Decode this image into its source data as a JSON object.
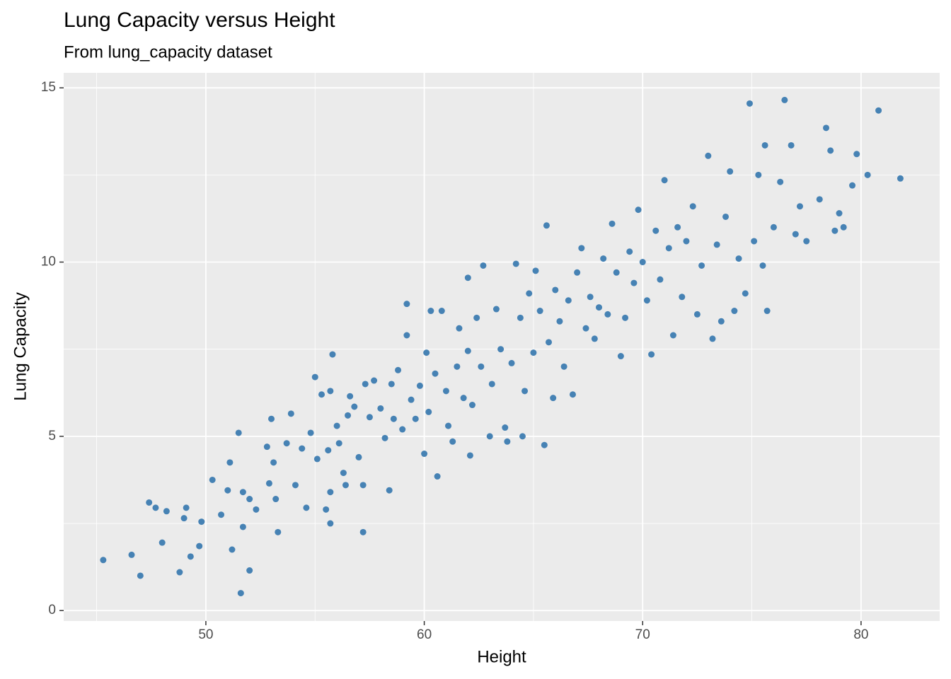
{
  "chart_data": {
    "type": "scatter",
    "title": "Lung Capacity versus Height",
    "subtitle": "From lung_capacity dataset",
    "x_label": "Height",
    "y_label": "Lung Capacity",
    "color": "#4682b4",
    "xlim": [
      43.49,
      83.6
    ],
    "ylim": [
      -0.3,
      15.43
    ],
    "xticks": [
      50,
      60,
      70,
      80
    ],
    "yticks": [
      0,
      5,
      10,
      15
    ],
    "xminor": [
      45,
      55,
      65,
      75
    ],
    "yminor": [
      2.5,
      7.5,
      12.5
    ],
    "grid": true,
    "x": [
      45.3,
      46.6,
      47.0,
      47.4,
      47.7,
      48.0,
      48.2,
      48.8,
      49.0,
      49.1,
      49.3,
      49.8,
      49.7,
      50.3,
      50.7,
      51.0,
      51.1,
      51.2,
      51.5,
      51.6,
      51.7,
      51.7,
      52.0,
      52.0,
      52.3,
      52.8,
      52.9,
      53.0,
      53.1,
      53.2,
      53.3,
      53.7,
      53.9,
      54.1,
      54.4,
      54.6,
      54.8,
      55.0,
      55.1,
      55.3,
      55.5,
      55.6,
      55.7,
      55.7,
      55.7,
      55.8,
      56.0,
      56.1,
      56.3,
      56.4,
      56.5,
      56.6,
      56.8,
      57.0,
      57.2,
      57.2,
      57.3,
      57.5,
      57.7,
      58.0,
      58.2,
      58.4,
      58.5,
      58.6,
      58.8,
      59.0,
      59.2,
      59.2,
      59.4,
      59.6,
      59.8,
      60.0,
      60.1,
      60.2,
      60.3,
      60.5,
      60.6,
      60.8,
      61.0,
      61.1,
      61.3,
      61.5,
      61.6,
      61.8,
      62.0,
      62.0,
      62.1,
      62.2,
      62.4,
      62.6,
      62.7,
      63.0,
      63.1,
      63.3,
      63.5,
      63.7,
      63.8,
      64.0,
      64.2,
      64.4,
      64.5,
      64.6,
      64.8,
      65.0,
      65.1,
      65.3,
      65.5,
      65.6,
      65.7,
      65.9,
      66.0,
      66.2,
      66.4,
      66.6,
      66.8,
      67.0,
      67.2,
      67.4,
      67.6,
      67.8,
      68.0,
      68.2,
      68.4,
      68.6,
      68.8,
      69.0,
      69.2,
      69.4,
      69.6,
      69.8,
      70.0,
      70.2,
      70.4,
      70.6,
      70.8,
      71.0,
      71.2,
      71.4,
      71.6,
      71.8,
      72.0,
      72.3,
      72.5,
      72.7,
      73.0,
      73.2,
      73.4,
      73.6,
      73.8,
      74.0,
      74.2,
      74.4,
      74.7,
      74.9,
      75.1,
      75.3,
      75.5,
      75.6,
      75.7,
      76.0,
      76.3,
      76.5,
      76.8,
      77.0,
      77.2,
      77.5,
      78.1,
      78.4,
      78.6,
      78.8,
      79.0,
      79.2,
      79.6,
      79.8,
      80.3,
      80.8,
      81.8
    ],
    "values": [
      1.45,
      1.6,
      1.0,
      3.1,
      2.95,
      1.95,
      2.85,
      1.1,
      2.65,
      2.95,
      1.55,
      2.55,
      1.85,
      3.75,
      2.75,
      3.45,
      4.25,
      1.75,
      5.1,
      0.5,
      3.4,
      2.4,
      1.15,
      3.2,
      2.9,
      4.7,
      3.65,
      5.5,
      4.25,
      3.2,
      2.25,
      4.8,
      5.65,
      3.6,
      4.65,
      2.95,
      5.1,
      6.7,
      4.35,
      6.2,
      2.9,
      4.6,
      6.3,
      3.4,
      2.5,
      7.35,
      5.3,
      4.8,
      3.95,
      3.6,
      5.6,
      6.15,
      5.85,
      4.4,
      2.25,
      3.6,
      6.5,
      5.55,
      6.6,
      5.8,
      4.95,
      3.45,
      6.5,
      5.5,
      6.9,
      5.2,
      8.8,
      7.9,
      6.05,
      5.5,
      6.45,
      4.5,
      7.4,
      5.7,
      8.6,
      6.8,
      3.85,
      8.6,
      6.3,
      5.3,
      4.85,
      7.0,
      8.1,
      6.1,
      7.45,
      9.55,
      4.45,
      5.9,
      8.4,
      7.0,
      9.9,
      5.0,
      6.5,
      8.65,
      7.5,
      5.25,
      4.85,
      7.1,
      9.95,
      8.4,
      5.0,
      6.3,
      9.1,
      7.4,
      9.75,
      8.6,
      4.75,
      11.05,
      7.7,
      6.1,
      9.2,
      8.3,
      7.0,
      8.9,
      6.2,
      9.7,
      10.4,
      8.1,
      9.0,
      7.8,
      8.7,
      10.1,
      8.5,
      11.1,
      9.7,
      7.3,
      8.4,
      10.3,
      9.4,
      11.5,
      10.0,
      8.9,
      7.35,
      10.9,
      9.5,
      12.35,
      10.4,
      7.9,
      11.0,
      9.0,
      10.6,
      11.6,
      8.5,
      9.9,
      13.05,
      7.8,
      10.5,
      8.3,
      11.3,
      12.6,
      8.6,
      10.1,
      9.1,
      14.55,
      10.6,
      12.5,
      9.9,
      13.35,
      8.6,
      11.0,
      12.3,
      14.65,
      13.35,
      10.8,
      11.6,
      10.6,
      11.8,
      13.85,
      13.2,
      10.9,
      11.4,
      11.0,
      12.2,
      13.1,
      12.5,
      14.35,
      12.4
    ]
  }
}
